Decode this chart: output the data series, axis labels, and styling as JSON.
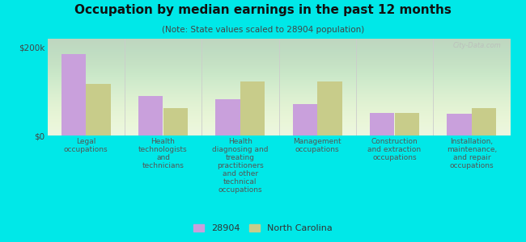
{
  "title": "Occupation by median earnings in the past 12 months",
  "subtitle": "(Note: State values scaled to 28904 population)",
  "categories": [
    "Legal\noccupations",
    "Health\ntechnologists\nand\ntechnicians",
    "Health\ndiagnosing and\ntreating\npractitioners\nand other\ntechnical\noccupations",
    "Management\noccupations",
    "Construction\nand extraction\noccupations",
    "Installation,\nmaintenance,\nand repair\noccupations"
  ],
  "values_28904": [
    185000,
    90000,
    82000,
    72000,
    52000,
    50000
  ],
  "values_nc": [
    118000,
    62000,
    122000,
    122000,
    52000,
    62000
  ],
  "color_28904": "#c9a0dc",
  "color_nc": "#c8cc8a",
  "ylim": [
    0,
    220000
  ],
  "yticks": [
    0,
    200000
  ],
  "ytick_labels": [
    "$0",
    "$200k"
  ],
  "background_color": "#e8f5e0",
  "outer_background": "#00e8e8",
  "legend_label_28904": "28904",
  "legend_label_nc": "North Carolina",
  "watermark": "City-Data.com",
  "title_fontsize": 11,
  "subtitle_fontsize": 7.5,
  "label_fontsize": 6.5,
  "legend_fontsize": 8
}
